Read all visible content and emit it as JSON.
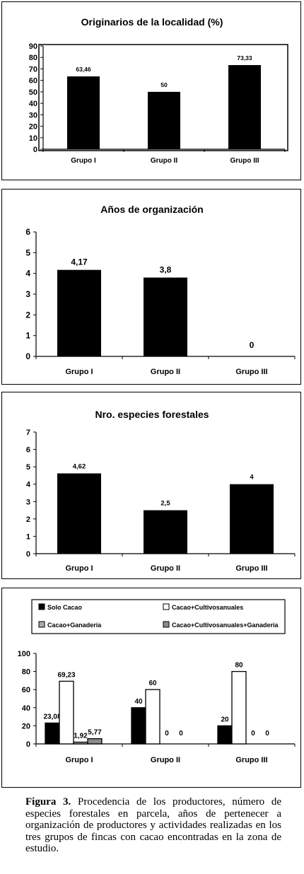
{
  "chart_data": [
    {
      "type": "bar",
      "title": "Originarios de la localidad (%)",
      "categories": [
        "Grupo I",
        "Grupo II",
        "Grupo III"
      ],
      "values": [
        63.46,
        50,
        73.33
      ],
      "value_labels": [
        "63,46",
        "50",
        "73,33"
      ],
      "yticks": [
        "0",
        "10",
        "20",
        "30",
        "40",
        "50",
        "60",
        "70",
        "80",
        "90"
      ],
      "ylim": [
        0,
        90
      ],
      "grid": false,
      "bar_color": "#000000"
    },
    {
      "type": "bar",
      "title": "Años de organización",
      "categories": [
        "Grupo I",
        "Grupo II",
        "Grupo III"
      ],
      "values": [
        4.17,
        3.8,
        0
      ],
      "value_labels": [
        "4,17",
        "3,8",
        "0"
      ],
      "yticks": [
        "0",
        "1",
        "2",
        "3",
        "4",
        "5",
        "6"
      ],
      "ylim": [
        0,
        6
      ],
      "grid": false,
      "bar_color": "#000000"
    },
    {
      "type": "bar",
      "title": "Nro. especies forestales",
      "categories": [
        "Grupo I",
        "Grupo II",
        "Grupo III"
      ],
      "values": [
        4.62,
        2.5,
        4
      ],
      "value_labels": [
        "4,62",
        "2,5",
        "4"
      ],
      "yticks": [
        "0",
        "1",
        "2",
        "3",
        "4",
        "5",
        "6",
        "7"
      ],
      "ylim": [
        0,
        7
      ],
      "grid": false,
      "bar_color": "#000000"
    },
    {
      "type": "bar",
      "title": "",
      "categories": [
        "Grupo I",
        "Grupo II",
        "Grupo III"
      ],
      "series": [
        {
          "name": "Solo Cacao",
          "values": [
            23.08,
            40,
            20
          ],
          "value_labels": [
            "23,08",
            "40",
            "20"
          ],
          "color": "#000000"
        },
        {
          "name": "Cacao+Cultivosanuales",
          "values": [
            69.23,
            60,
            80
          ],
          "value_labels": [
            "69,23",
            "60",
            "80"
          ],
          "color": "#ffffff"
        },
        {
          "name": "Cacao+Ganadería",
          "values": [
            1.92,
            0,
            0
          ],
          "value_labels": [
            "1,92",
            "0",
            "0"
          ],
          "color": "#aaaaaa"
        },
        {
          "name": "Cacao+Cultivosanuales+Ganadería",
          "values": [
            5.77,
            0,
            0
          ],
          "value_labels": [
            "5,77",
            "0",
            "0"
          ],
          "color": "#8a8a8a"
        }
      ],
      "yticks": [
        "0",
        "20",
        "40",
        "60",
        "80",
        "100"
      ],
      "ylim": [
        0,
        100
      ],
      "grid": false,
      "legend": "top"
    }
  ],
  "caption": {
    "label": "Figura 3.",
    "text": "Procedencia de los productores, número de especies forestales en parcela, años de pertenecer a organización de productores y actividades realizadas en los tres grupos de fincas con cacao encontradas en la zona de estudio."
  }
}
